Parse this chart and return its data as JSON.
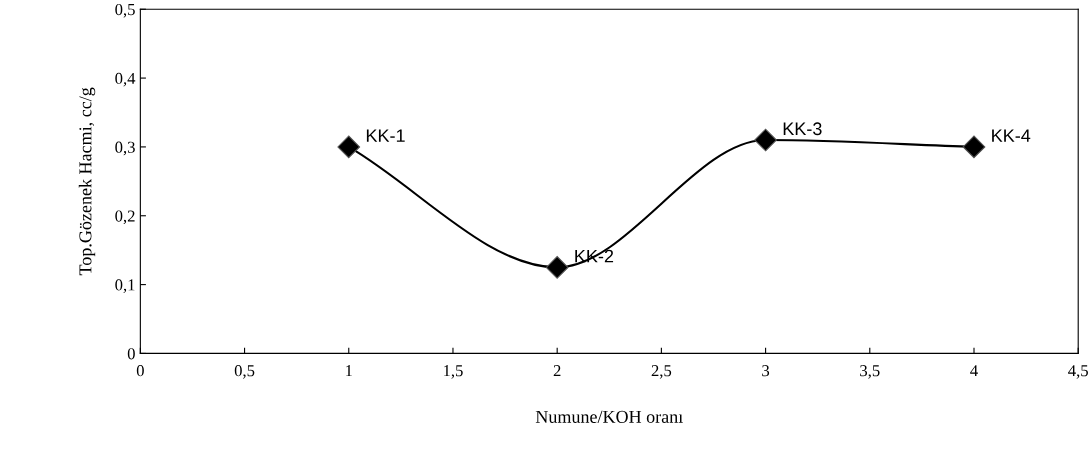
{
  "chart_data": {
    "type": "line",
    "xlabel": "Numune/KOH oranı",
    "ylabel": "Top.Gözenek Hacmi, cc/g",
    "x": [
      1,
      2,
      3,
      4
    ],
    "series": [
      {
        "color": "#000000",
        "values": [
          0.3,
          0.125,
          0.31,
          0.3
        ]
      }
    ],
    "marker": "diamond",
    "xlim": [
      0,
      4.5
    ],
    "ylim": [
      0,
      0.5
    ],
    "xticks": [
      0,
      {
        "value": 0.5,
        "label": "0,5"
      },
      1,
      {
        "value": 1.5,
        "label": "1,5"
      },
      2,
      {
        "value": 2.5,
        "label": "2,5"
      },
      3,
      {
        "value": 3.5,
        "label": "3,5"
      },
      4,
      {
        "value": 4.5,
        "label": "4,5"
      }
    ],
    "yticks": [
      0,
      {
        "value": 0.1,
        "label": "0,1"
      },
      {
        "value": 0.2,
        "label": "0,2"
      },
      {
        "value": 0.3,
        "label": "0,3"
      },
      {
        "value": 0.4,
        "label": "0,4"
      },
      {
        "value": 0.5,
        "label": "0,5"
      }
    ],
    "grid": false,
    "legend": false,
    "annotations": [
      {
        "text": "KK-1",
        "x": 1,
        "y": 0.3
      },
      {
        "text": "KK-2",
        "x": 2,
        "y": 0.125
      },
      {
        "text": "KK-3",
        "x": 3,
        "y": 0.31
      },
      {
        "text": "KK-4",
        "x": 4,
        "y": 0.3
      }
    ]
  }
}
